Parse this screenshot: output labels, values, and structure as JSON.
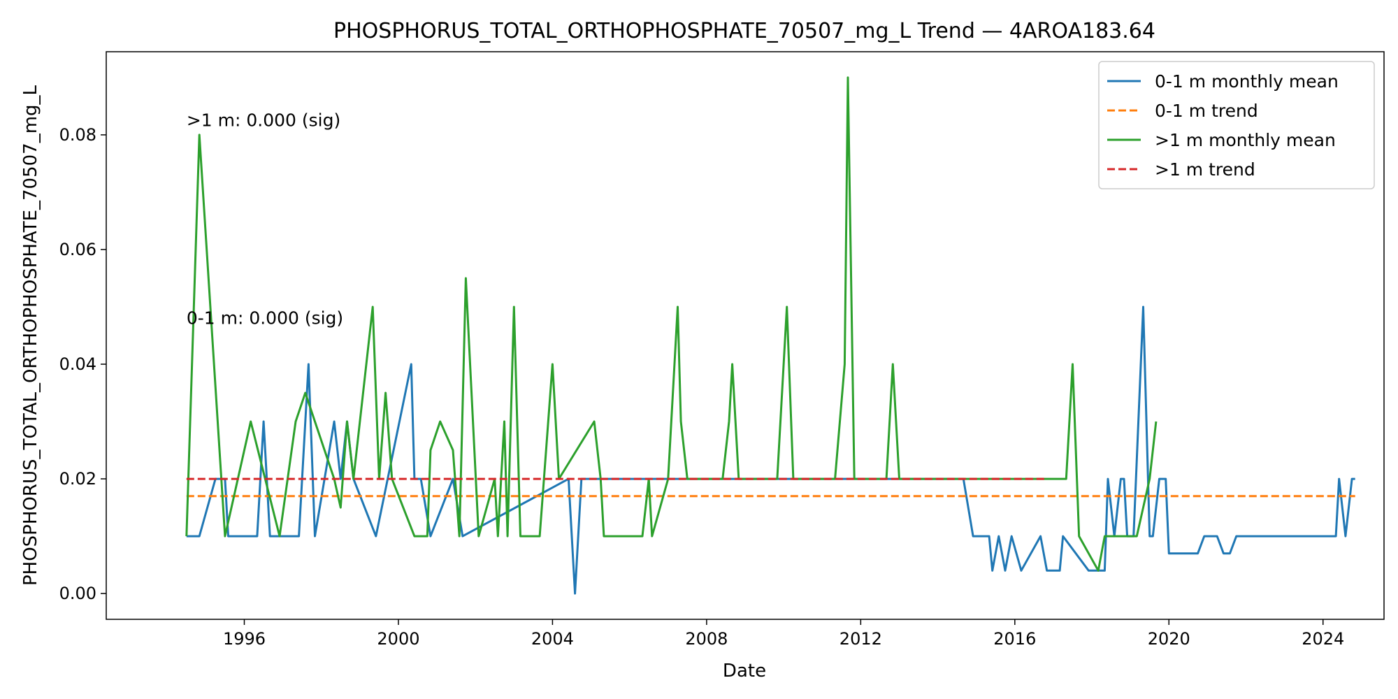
{
  "chart_data": {
    "type": "line",
    "title": "PHOSPHORUS_TOTAL_ORTHOPHOSPHATE_70507_mg_L Trend — 4AROA183.64",
    "xlabel": "Date",
    "ylabel": "PHOSPHORUS_TOTAL_ORTHOPHOSPHATE_70507_mg_L",
    "x_type": "date",
    "xlim": [
      "1992-06-01",
      "2025-08-01"
    ],
    "ylim": [
      -0.0045,
      0.0945
    ],
    "x_ticks": [
      "1996",
      "2000",
      "2004",
      "2008",
      "2012",
      "2016",
      "2020",
      "2024"
    ],
    "y_ticks": [
      "0.00",
      "0.02",
      "0.04",
      "0.06",
      "0.08"
    ],
    "grid": false,
    "legend_position": "top-right",
    "series": [
      {
        "name": "0-1 m monthly mean",
        "color": "#1f77b4",
        "style": "solid",
        "points": [
          [
            "1994-07-01",
            0.01
          ],
          [
            "1994-11-01",
            0.01
          ],
          [
            "1995-04-01",
            0.02
          ],
          [
            "1995-07-01",
            0.02
          ],
          [
            "1995-08-01",
            0.01
          ],
          [
            "1996-05-01",
            0.01
          ],
          [
            "1996-07-01",
            0.03
          ],
          [
            "1996-09-01",
            0.01
          ],
          [
            "1997-06-01",
            0.01
          ],
          [
            "1997-09-01",
            0.04
          ],
          [
            "1997-11-01",
            0.01
          ],
          [
            "1998-05-01",
            0.03
          ],
          [
            "1998-07-01",
            0.02
          ],
          [
            "1998-09-01",
            0.03
          ],
          [
            "1998-11-01",
            0.02
          ],
          [
            "1999-06-01",
            0.01
          ],
          [
            "2000-05-01",
            0.04
          ],
          [
            "2000-06-01",
            0.02
          ],
          [
            "2000-08-01",
            0.02
          ],
          [
            "2000-11-01",
            0.01
          ],
          [
            "2001-06-01",
            0.02
          ],
          [
            "2001-09-01",
            0.01
          ],
          [
            "2004-06-01",
            0.02
          ],
          [
            "2004-08-01",
            0.0
          ],
          [
            "2004-10-01",
            0.02
          ],
          [
            "2014-09-01",
            0.02
          ],
          [
            "2014-12-01",
            0.01
          ],
          [
            "2015-05-01",
            0.01
          ],
          [
            "2015-06-01",
            0.004
          ],
          [
            "2015-08-01",
            0.01
          ],
          [
            "2015-10-01",
            0.004
          ],
          [
            "2015-12-01",
            0.01
          ],
          [
            "2016-03-01",
            0.004
          ],
          [
            "2016-09-01",
            0.01
          ],
          [
            "2016-11-01",
            0.004
          ],
          [
            "2017-03-01",
            0.004
          ],
          [
            "2017-04-01",
            0.01
          ],
          [
            "2017-12-01",
            0.004
          ],
          [
            "2018-05-01",
            0.004
          ],
          [
            "2018-06-01",
            0.02
          ],
          [
            "2018-08-01",
            0.01
          ],
          [
            "2018-10-01",
            0.02
          ],
          [
            "2018-11-01",
            0.02
          ],
          [
            "2018-12-01",
            0.01
          ],
          [
            "2019-02-01",
            0.01
          ],
          [
            "2019-05-01",
            0.05
          ],
          [
            "2019-07-01",
            0.01
          ],
          [
            "2019-08-01",
            0.01
          ],
          [
            "2019-10-01",
            0.02
          ],
          [
            "2019-12-01",
            0.02
          ],
          [
            "2020-01-01",
            0.007
          ],
          [
            "2020-10-01",
            0.007
          ],
          [
            "2020-12-01",
            0.01
          ],
          [
            "2021-04-01",
            0.01
          ],
          [
            "2021-06-01",
            0.007
          ],
          [
            "2021-08-01",
            0.007
          ],
          [
            "2021-10-01",
            0.01
          ],
          [
            "2024-05-01",
            0.01
          ],
          [
            "2024-06-01",
            0.02
          ],
          [
            "2024-08-01",
            0.01
          ],
          [
            "2024-10-01",
            0.02
          ],
          [
            "2024-11-01",
            0.02
          ]
        ]
      },
      {
        "name": "0-1 m trend",
        "color": "#ff7f0e",
        "style": "dashed",
        "points": [
          [
            "1994-07-01",
            0.017
          ],
          [
            "2024-11-01",
            0.017
          ]
        ]
      },
      {
        "name": ">1 m monthly mean",
        "color": "#2ca02c",
        "style": "solid",
        "points": [
          [
            "1994-07-01",
            0.01
          ],
          [
            "1994-11-01",
            0.08
          ],
          [
            "1995-07-01",
            0.01
          ],
          [
            "1996-03-01",
            0.03
          ],
          [
            "1996-12-01",
            0.01
          ],
          [
            "1997-05-01",
            0.03
          ],
          [
            "1997-08-01",
            0.035
          ],
          [
            "1997-11-01",
            0.03
          ],
          [
            "1998-02-01",
            0.025
          ],
          [
            "1998-05-01",
            0.02
          ],
          [
            "1998-07-01",
            0.015
          ],
          [
            "1998-09-01",
            0.03
          ],
          [
            "1998-11-01",
            0.02
          ],
          [
            "1999-05-01",
            0.05
          ],
          [
            "1999-07-01",
            0.02
          ],
          [
            "1999-09-01",
            0.035
          ],
          [
            "1999-11-01",
            0.02
          ],
          [
            "2000-06-01",
            0.01
          ],
          [
            "2000-10-01",
            0.01
          ],
          [
            "2000-11-01",
            0.025
          ],
          [
            "2001-02-01",
            0.03
          ],
          [
            "2001-06-01",
            0.025
          ],
          [
            "2001-08-01",
            0.01
          ],
          [
            "2001-10-01",
            0.055
          ],
          [
            "2002-02-01",
            0.01
          ],
          [
            "2002-07-01",
            0.02
          ],
          [
            "2002-08-01",
            0.01
          ],
          [
            "2002-10-01",
            0.03
          ],
          [
            "2002-11-01",
            0.01
          ],
          [
            "2003-01-01",
            0.05
          ],
          [
            "2003-03-01",
            0.01
          ],
          [
            "2003-09-01",
            0.01
          ],
          [
            "2004-01-01",
            0.04
          ],
          [
            "2004-03-01",
            0.02
          ],
          [
            "2005-02-01",
            0.03
          ],
          [
            "2005-04-01",
            0.02
          ],
          [
            "2005-05-01",
            0.01
          ],
          [
            "2006-05-01",
            0.01
          ],
          [
            "2006-07-01",
            0.02
          ],
          [
            "2006-08-01",
            0.01
          ],
          [
            "2007-01-01",
            0.02
          ],
          [
            "2007-04-01",
            0.05
          ],
          [
            "2007-05-01",
            0.03
          ],
          [
            "2007-07-01",
            0.02
          ],
          [
            "2008-06-01",
            0.02
          ],
          [
            "2008-08-01",
            0.03
          ],
          [
            "2008-09-01",
            0.04
          ],
          [
            "2008-11-01",
            0.02
          ],
          [
            "2009-11-01",
            0.02
          ],
          [
            "2010-02-01",
            0.05
          ],
          [
            "2010-04-01",
            0.02
          ],
          [
            "2011-05-01",
            0.02
          ],
          [
            "2011-08-01",
            0.04
          ],
          [
            "2011-09-01",
            0.09
          ],
          [
            "2011-11-01",
            0.02
          ],
          [
            "2012-09-01",
            0.02
          ],
          [
            "2012-11-01",
            0.04
          ],
          [
            "2013-01-01",
            0.02
          ],
          [
            "2017-05-01",
            0.02
          ],
          [
            "2017-07-01",
            0.04
          ],
          [
            "2017-09-01",
            0.01
          ],
          [
            "2018-03-01",
            0.004
          ],
          [
            "2018-05-01",
            0.01
          ],
          [
            "2018-09-01",
            0.01
          ],
          [
            "2019-03-01",
            0.01
          ],
          [
            "2019-07-01",
            0.02
          ],
          [
            "2019-09-01",
            0.03
          ]
        ]
      },
      {
        "name": ">1 m trend",
        "color": "#d62728",
        "style": "dashed",
        "points": [
          [
            "1994-07-01",
            0.02
          ],
          [
            "2016-11-01",
            0.02
          ]
        ]
      }
    ],
    "annotations": [
      {
        "text": ">1 m: 0.000 (sig)",
        "x": "1994-07-01",
        "y": 0.0815
      },
      {
        "text": "0-1 m: 0.000 (sig)",
        "x": "1994-07-01",
        "y": 0.047
      }
    ]
  }
}
